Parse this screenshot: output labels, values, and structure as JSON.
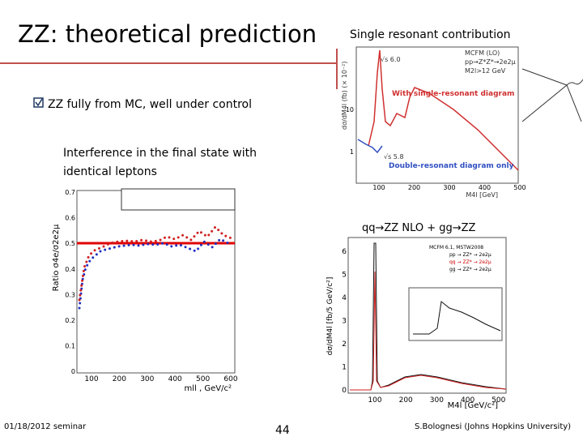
{
  "title": "ZZ: theoretical prediction",
  "subtitle_right": "Single resonant contribution",
  "bullet": "ZZ fully from MC, well under control",
  "interference_text": [
    "Interference in the final state with",
    "identical leptons"
  ],
  "gg_label": "qq→ZZ NLO + gg→ZZ",
  "footer": {
    "date": "01/18/2012 seminar",
    "page": 44,
    "author": "S.Bolognesi (Johns Hopkins University)"
  },
  "plot_single": {
    "ylabel": "dσ/dM4l (fb) (× 10⁻²)",
    "yticks": [
      10,
      1
    ],
    "xticks": [
      100,
      200,
      300,
      400,
      500
    ],
    "xlabel": "M4l [GeV]",
    "legend": [
      "MCFM (LO)",
      "pp→Z*Z*→2e2μ",
      "M2l>12 GeV"
    ],
    "label_single": "With single-resonant diagram",
    "label_double": "Double-resonant diagram only"
  },
  "plot_interference": {
    "ylabel": "Ratio σ4e/σ2e2μ",
    "yticks": [
      0.7,
      0.6,
      0.5,
      0.4,
      0.3,
      0.2,
      0.1,
      0
    ],
    "xticks": [
      100,
      200,
      300,
      400,
      500,
      600
    ],
    "xlabel": "mll , GeV/c²"
  },
  "plot_total": {
    "ylabel": "dσ/dM4l [fb/5 GeV/c²]",
    "yticks": [
      6,
      5,
      4,
      3,
      2,
      1,
      0
    ],
    "xticks": [
      100,
      200,
      300,
      400,
      500
    ],
    "xlabel": "M4l [GeV/c²]",
    "legend": [
      "MCFM 6.1, MSTW2008",
      "pp → ZZ* → 2e2μ",
      "qq → ZZ* → 2e2μ",
      "gg → ZZ* → 2e2μ"
    ]
  }
}
